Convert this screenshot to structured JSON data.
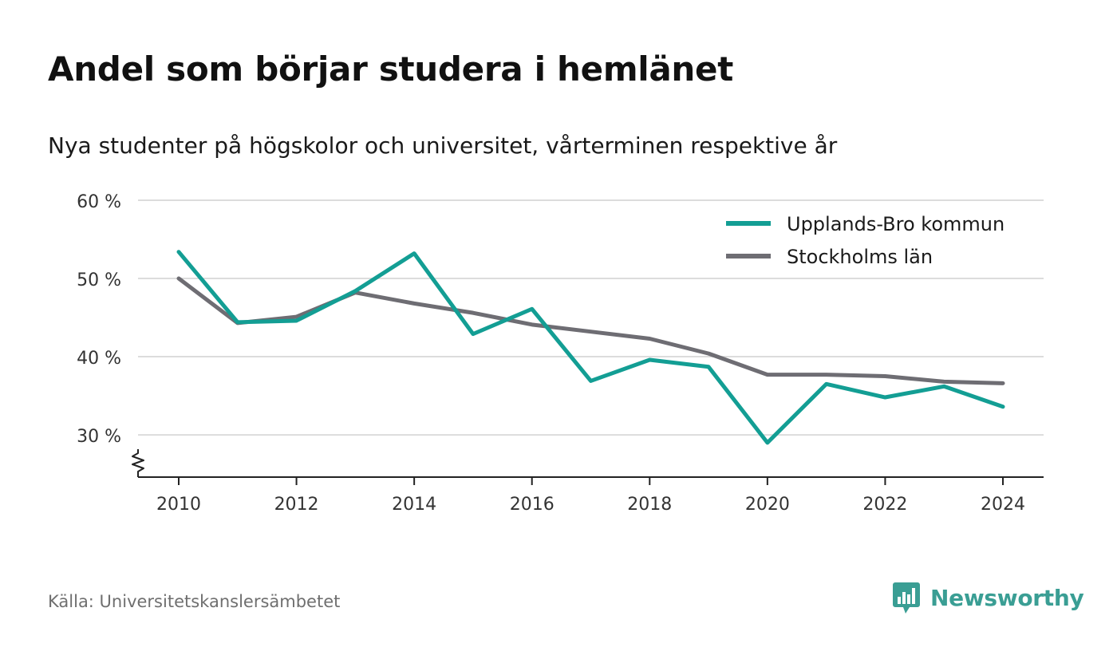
{
  "title": "Andel som börjar studera i hemlänet",
  "subtitle": "Nya studenter på högskolor och universitet, vårterminen respektive år",
  "source": "Källa: Universitetskanslersämbetet",
  "brand": {
    "name": "Newsworthy",
    "icon": "newsworthy-logo-icon",
    "color": "#3a9e94"
  },
  "chart_data": {
    "type": "line",
    "x": [
      2010,
      2011,
      2012,
      2013,
      2014,
      2015,
      2016,
      2017,
      2018,
      2019,
      2020,
      2021,
      2022,
      2023,
      2024
    ],
    "xticks": [
      2010,
      2012,
      2014,
      2016,
      2018,
      2020,
      2022,
      2024
    ],
    "xtick_labels": [
      "2010",
      "2012",
      "2014",
      "2016",
      "2018",
      "2020",
      "2022",
      "2024"
    ],
    "yticks": [
      30,
      40,
      50,
      60
    ],
    "ytick_labels": [
      "30 %",
      "40 %",
      "50 %",
      "60 %"
    ],
    "ylim": [
      24.6,
      60
    ],
    "y_axis_break": true,
    "grid": true,
    "legend_position": "top-right",
    "series": [
      {
        "name": "Upplands-Bro kommun",
        "color": "#139e94",
        "values": [
          53.4,
          44.4,
          44.6,
          48.4,
          53.2,
          42.9,
          46.1,
          36.9,
          39.6,
          38.7,
          29.0,
          36.5,
          34.8,
          36.2,
          33.6
        ]
      },
      {
        "name": "Stockholms län",
        "color": "#6e6d73",
        "values": [
          50.0,
          44.3,
          45.1,
          48.2,
          46.8,
          45.6,
          44.1,
          43.2,
          42.3,
          40.4,
          37.7,
          37.7,
          37.5,
          36.8,
          36.6
        ]
      }
    ]
  }
}
